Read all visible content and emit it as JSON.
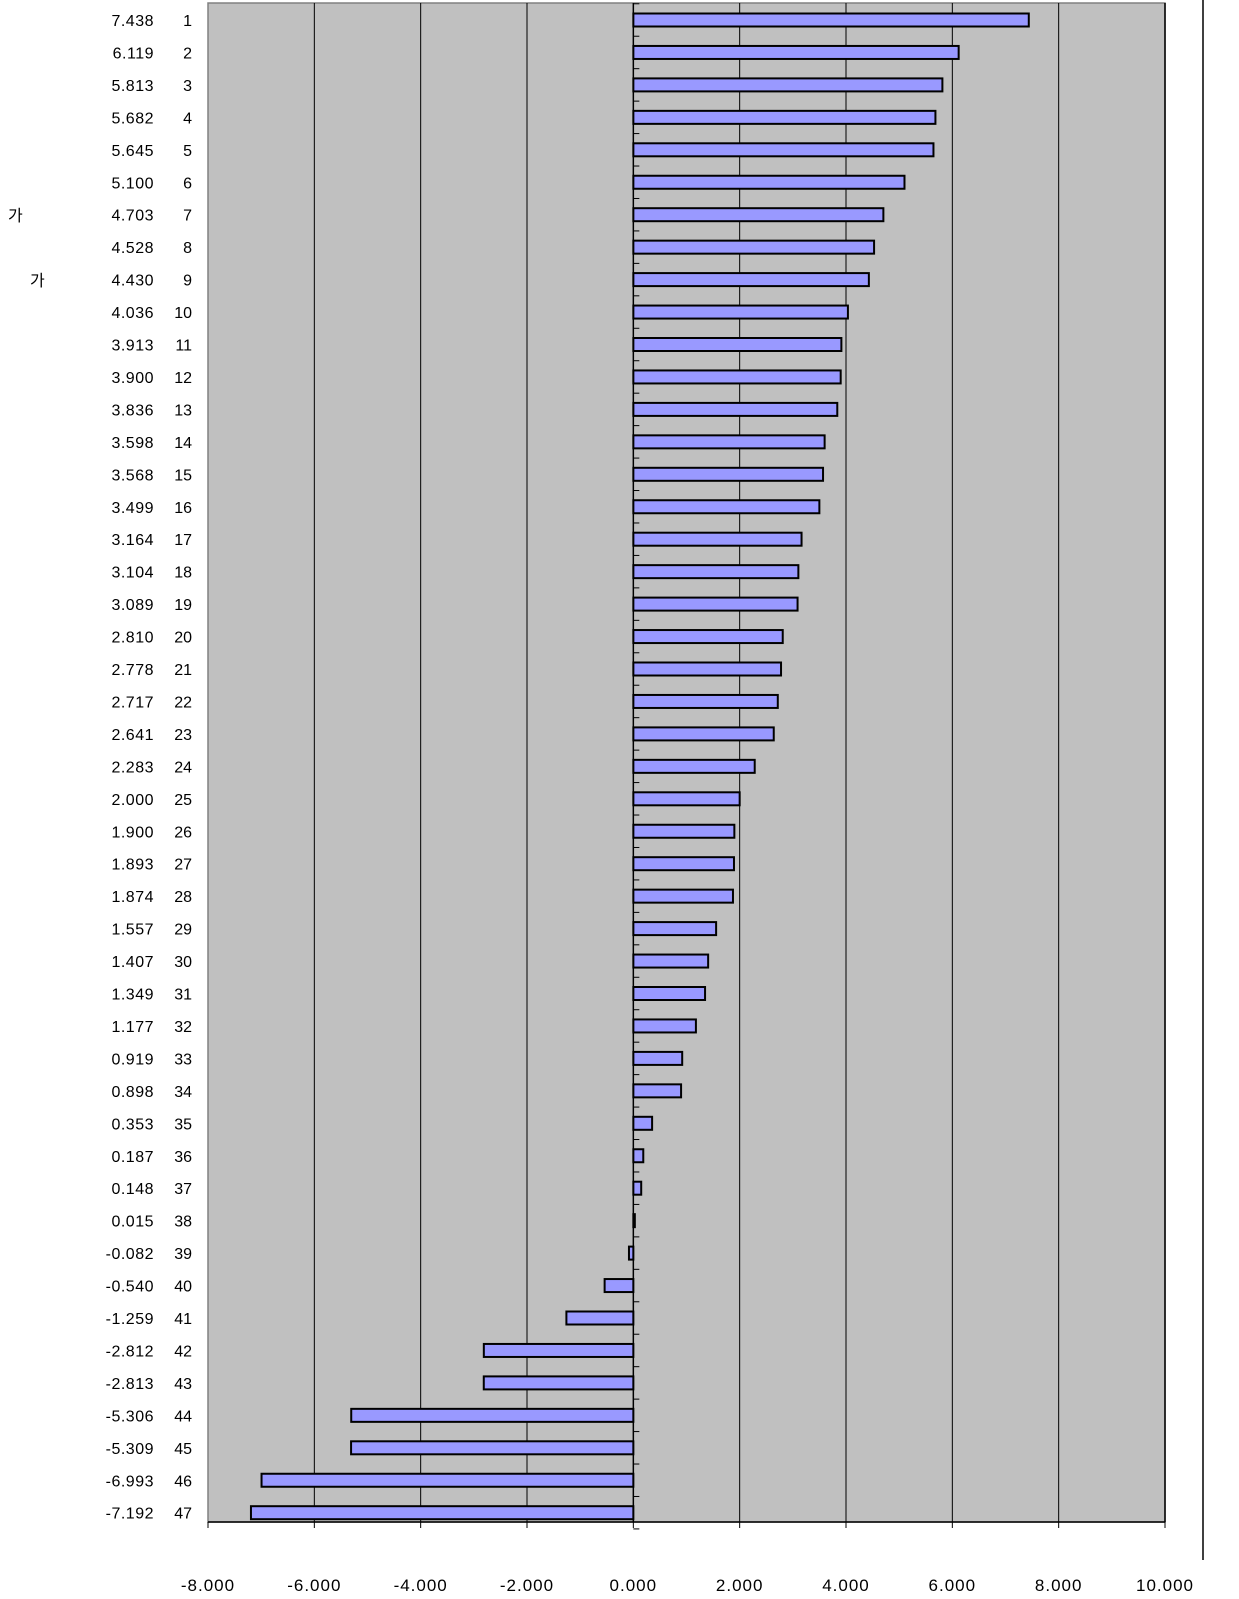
{
  "side_labels": [
    "가",
    "가"
  ],
  "chart_data": {
    "type": "bar",
    "orientation": "horizontal",
    "categories": [
      "1",
      "2",
      "3",
      "4",
      "5",
      "6",
      "7",
      "8",
      "9",
      "10",
      "11",
      "12",
      "13",
      "14",
      "15",
      "16",
      "17",
      "18",
      "19",
      "20",
      "21",
      "22",
      "23",
      "24",
      "25",
      "26",
      "27",
      "28",
      "29",
      "30",
      "31",
      "32",
      "33",
      "34",
      "35",
      "36",
      "37",
      "38",
      "39",
      "40",
      "41",
      "42",
      "43",
      "44",
      "45",
      "46",
      "47"
    ],
    "values": [
      7.438,
      6.119,
      5.813,
      5.682,
      5.645,
      5.1,
      4.703,
      4.528,
      4.43,
      4.036,
      3.913,
      3.9,
      3.836,
      3.598,
      3.568,
      3.499,
      3.164,
      3.104,
      3.089,
      2.81,
      2.778,
      2.717,
      2.641,
      2.283,
      2.0,
      1.9,
      1.893,
      1.874,
      1.557,
      1.407,
      1.349,
      1.177,
      0.919,
      0.898,
      0.353,
      0.187,
      0.148,
      0.015,
      -0.082,
      -0.54,
      -1.259,
      -2.812,
      -2.813,
      -5.306,
      -5.309,
      -6.993,
      -7.192
    ],
    "value_labels": [
      "7.438",
      "6.119",
      "5.813",
      "5.682",
      "5.645",
      "5.100",
      "4.703",
      "4.528",
      "4.430",
      "4.036",
      "3.913",
      "3.900",
      "3.836",
      "3.598",
      "3.568",
      "3.499",
      "3.164",
      "3.104",
      "3.089",
      "2.810",
      "2.778",
      "2.717",
      "2.641",
      "2.283",
      "2.000",
      "1.900",
      "1.893",
      "1.874",
      "1.557",
      "1.407",
      "1.349",
      "1.177",
      "0.919",
      "0.898",
      "0.353",
      "0.187",
      "0.148",
      "0.015",
      "-0.082",
      "-0.540",
      "-1.259",
      "-2.812",
      "-2.813",
      "-5.306",
      "-5.309",
      "-6.993",
      "-7.192"
    ],
    "x_ticks": [
      "-8.000",
      "-6.000",
      "-4.000",
      "-2.000",
      "0.000",
      "2.000",
      "4.000",
      "6.000",
      "8.000",
      "10.000"
    ],
    "xlim": [
      -8,
      10
    ],
    "title": "",
    "xlabel": "",
    "ylabel": "",
    "grid": true,
    "legend": "none",
    "colors": {
      "bar_fill": "#9999ff",
      "bar_stroke": "#000000",
      "plot_background": "#c0c0c0",
      "gridline": "#000000"
    }
  }
}
